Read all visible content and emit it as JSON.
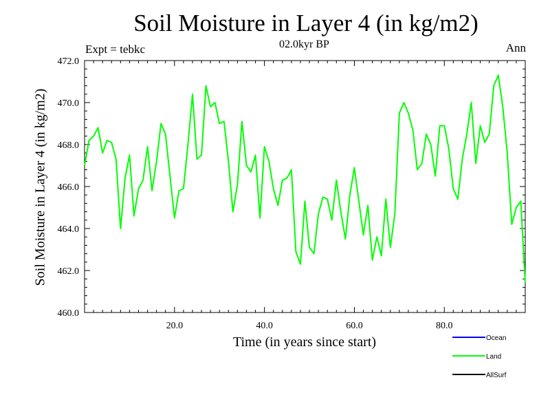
{
  "chart_data": {
    "type": "line",
    "title": "Soil Moisture in Layer 4 (in kg/m2)",
    "subtitle": "02.0kyr BP",
    "expt_label": "Expt = tebkc",
    "season_label": "Ann",
    "xlabel": "Time (in years since start)",
    "ylabel": "Soil Moisture in Layer 4 (in kg/m2)",
    "xlim": [
      0,
      98
    ],
    "ylim": [
      460.0,
      472.0
    ],
    "x_ticks": [
      "20.0",
      "40.0",
      "60.0",
      "80.0"
    ],
    "y_ticks": [
      "460.0",
      "462.0",
      "464.0",
      "466.0",
      "468.0",
      "470.0",
      "472.0"
    ],
    "legend": [
      {
        "name": "Ocean",
        "color": "#0000ff"
      },
      {
        "name": "Land",
        "color": "#00ff00"
      },
      {
        "name": "AllSurf",
        "color": "#000000"
      }
    ],
    "series": [
      {
        "name": "Land",
        "color": "#00ff00",
        "x": [
          0,
          1,
          2,
          3,
          4,
          5,
          6,
          7,
          8,
          9,
          10,
          11,
          12,
          13,
          14,
          15,
          16,
          17,
          18,
          19,
          20,
          21,
          22,
          23,
          24,
          25,
          26,
          27,
          28,
          29,
          30,
          31,
          32,
          33,
          34,
          35,
          36,
          37,
          38,
          39,
          40,
          41,
          42,
          43,
          44,
          45,
          46,
          47,
          48,
          49,
          50,
          51,
          52,
          53,
          54,
          55,
          56,
          57,
          58,
          59,
          60,
          61,
          62,
          63,
          64,
          65,
          66,
          67,
          68,
          69,
          70,
          71,
          72,
          73,
          74,
          75,
          76,
          77,
          78,
          79,
          80,
          81,
          82,
          83,
          84,
          85,
          86,
          87,
          88,
          89,
          90,
          91,
          92,
          93,
          94,
          95,
          96,
          97,
          98
        ],
        "values": [
          467.0,
          468.2,
          468.4,
          468.8,
          467.6,
          468.2,
          468.1,
          467.3,
          464.0,
          466.4,
          467.5,
          464.6,
          465.9,
          466.3,
          467.9,
          465.8,
          467.2,
          469.0,
          468.5,
          466.5,
          464.5,
          465.8,
          465.9,
          468.0,
          470.4,
          467.3,
          467.5,
          470.8,
          469.8,
          470.0,
          469.0,
          469.1,
          467.2,
          464.8,
          466.1,
          469.1,
          467.0,
          466.7,
          467.5,
          464.5,
          467.9,
          467.2,
          465.9,
          465.1,
          466.3,
          466.4,
          466.8,
          462.9,
          462.3,
          465.3,
          463.1,
          462.8,
          464.7,
          465.5,
          465.4,
          464.4,
          466.3,
          464.8,
          463.5,
          465.6,
          466.9,
          465.3,
          463.7,
          465.1,
          462.5,
          463.6,
          462.7,
          465.4,
          463.1,
          464.7,
          469.5,
          470.0,
          469.5,
          468.7,
          466.8,
          467.1,
          468.5,
          468.0,
          466.5,
          468.9,
          468.9,
          467.8,
          465.9,
          465.4,
          467.3,
          468.5,
          470.0,
          467.1,
          468.9,
          468.1,
          468.5,
          470.8,
          471.3,
          469.8,
          467.6,
          464.2,
          465.0,
          465.3,
          461.4
        ]
      }
    ]
  }
}
